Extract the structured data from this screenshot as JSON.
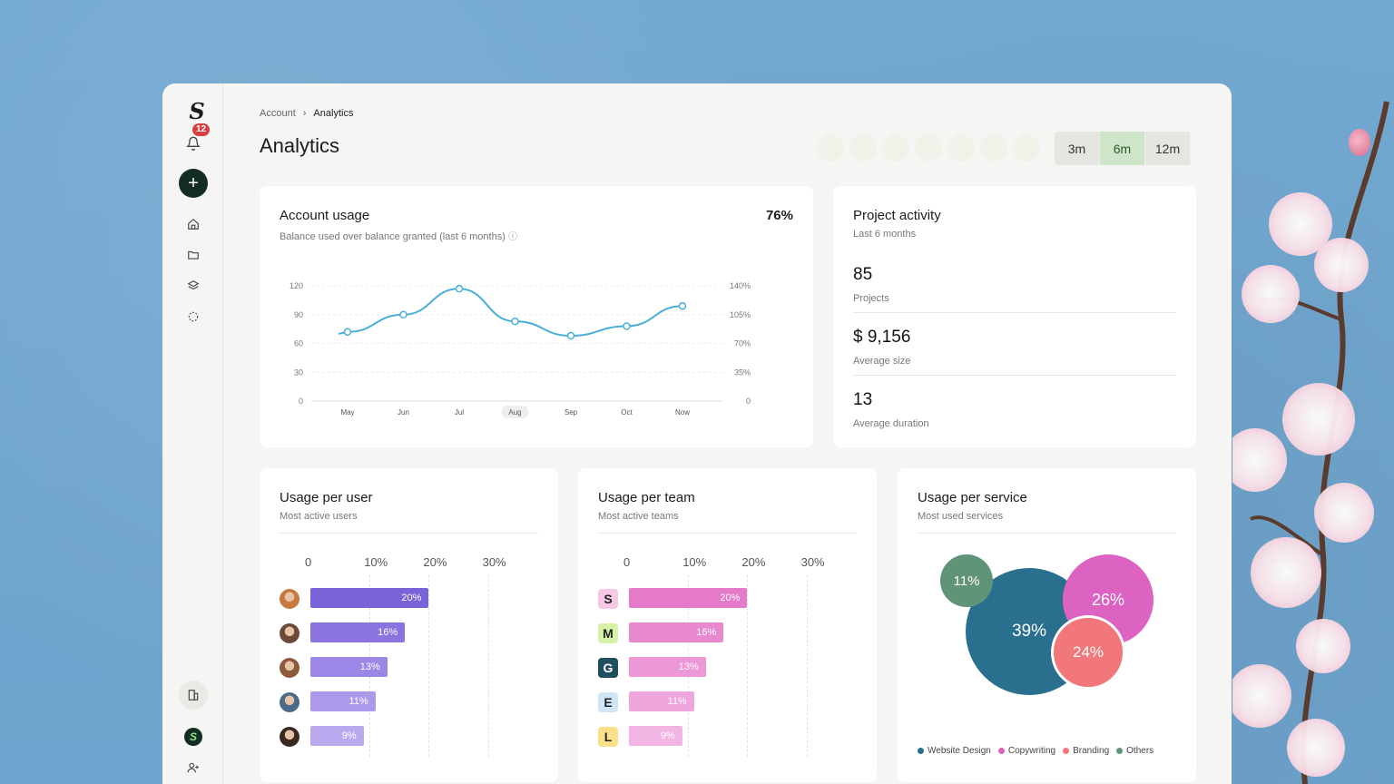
{
  "breadcrumb": {
    "parent": "Account",
    "current": "Analytics"
  },
  "page_title": "Analytics",
  "ranges": [
    {
      "label": "3m"
    },
    {
      "label": "6m"
    },
    {
      "label": "12m"
    }
  ],
  "sidebar": {
    "logo": "S",
    "notification_count": "12",
    "add_label": "+",
    "items": [
      "home-icon",
      "folder-icon",
      "layers-icon",
      "loader-icon"
    ],
    "bottom_items": [
      "building-icon",
      "brand-icon",
      "add-user-icon"
    ]
  },
  "account_usage": {
    "title": "Account usage",
    "subtitle": "Balance used over balance granted (last 6 months)",
    "percent": "76%"
  },
  "chart_data": {
    "type": "line",
    "categories": [
      "May",
      "Jun",
      "Jul",
      "Aug",
      "Sep",
      "Oct",
      "Now"
    ],
    "values": [
      72,
      90,
      117,
      83,
      68,
      78,
      99
    ],
    "y_left_ticks": [
      "0",
      "30",
      "60",
      "90",
      "120"
    ],
    "y_right_ticks": [
      "0",
      "35%",
      "70%",
      "105%",
      "140%"
    ],
    "ylim": [
      0,
      120
    ],
    "highlighted": "Aug",
    "color": "#4aaed6"
  },
  "project_activity": {
    "title": "Project activity",
    "subtitle": "Last 6 months",
    "stats": [
      {
        "value": "85",
        "label": "Projects"
      },
      {
        "value": "$ 9,156",
        "label": "Average size"
      },
      {
        "value": "13",
        "label": "Average duration"
      }
    ]
  },
  "usage_per_user": {
    "title": "Usage per user",
    "subtitle": "Most active users",
    "axis": [
      "0",
      "10%",
      "20%",
      "30%"
    ],
    "rows": [
      {
        "value": 20,
        "label": "20%"
      },
      {
        "value": 16,
        "label": "16%"
      },
      {
        "value": 13,
        "label": "13%"
      },
      {
        "value": 11,
        "label": "11%"
      },
      {
        "value": 9,
        "label": "9%"
      }
    ],
    "colors": [
      "#7a63d8",
      "#8c74e0",
      "#9d87e6",
      "#ad99eb",
      "#bba9ef"
    ]
  },
  "usage_per_team": {
    "title": "Usage per team",
    "subtitle": "Most active teams",
    "axis": [
      "0",
      "10%",
      "20%",
      "30%"
    ],
    "rows": [
      {
        "letter": "S",
        "value": 20,
        "label": "20%",
        "badge_bg": "#f7c8e6",
        "badge_fg": "#222"
      },
      {
        "letter": "M",
        "value": 16,
        "label": "16%",
        "badge_bg": "#d6f2a8",
        "badge_fg": "#222"
      },
      {
        "letter": "G",
        "value": 13,
        "label": "13%",
        "badge_bg": "#1f4f5f",
        "badge_fg": "#fff"
      },
      {
        "letter": "E",
        "value": 11,
        "label": "11%",
        "badge_bg": "#cfe6f7",
        "badge_fg": "#222"
      },
      {
        "letter": "L",
        "value": 9,
        "label": "9%",
        "badge_bg": "#fbe08a",
        "badge_fg": "#222"
      }
    ],
    "colors": [
      "#e47ac8",
      "#e888cf",
      "#ec97d6",
      "#efa6dd",
      "#f2b4e3"
    ]
  },
  "usage_per_service": {
    "title": "Usage per service",
    "subtitle": "Most used services",
    "bubbles": [
      {
        "name": "Website Design",
        "value": 39,
        "label": "39%",
        "color": "#2b6f8f"
      },
      {
        "name": "Copywriting",
        "value": 26,
        "label": "26%",
        "color": "#dd63c2"
      },
      {
        "name": "Branding",
        "value": 24,
        "label": "24%",
        "color": "#f2777a"
      },
      {
        "name": "Others",
        "value": 11,
        "label": "11%",
        "color": "#5f9478"
      }
    ]
  }
}
